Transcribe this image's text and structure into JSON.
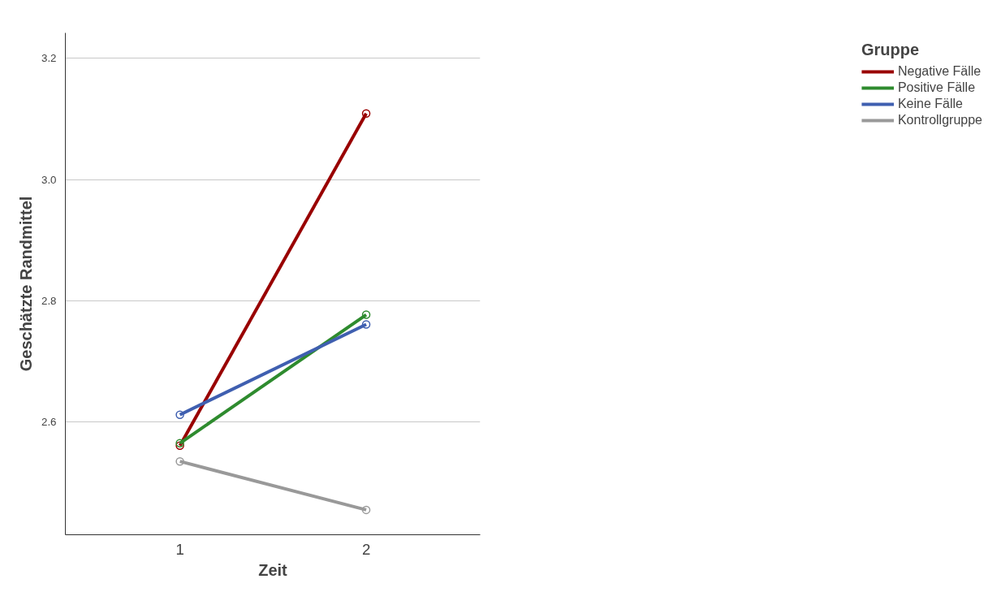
{
  "chart_data": {
    "type": "line",
    "xlabel": "Zeit",
    "ylabel": "Geschätzte Randmittel",
    "legend_title": "Gruppe",
    "categories": [
      "1",
      "2"
    ],
    "series": [
      {
        "name": "Negative Fälle",
        "color": "#990000",
        "values": [
          2.561,
          3.109
        ]
      },
      {
        "name": "Positive Fälle",
        "color": "#2e8b2e",
        "values": [
          2.565,
          2.777
        ]
      },
      {
        "name": "Keine Fälle",
        "color": "#3f5fb0",
        "values": [
          2.612,
          2.761
        ]
      },
      {
        "name": "Kontrollgruppe",
        "color": "#999999",
        "values": [
          2.535,
          2.455
        ]
      }
    ],
    "ylim": [
      2.414,
      3.242
    ],
    "yticks": [
      {
        "value": 2.6,
        "label": "2.6"
      },
      {
        "value": 2.8,
        "label": "2.8"
      },
      {
        "value": 3.0,
        "label": "3.0"
      },
      {
        "value": 3.2,
        "label": "3.2"
      }
    ],
    "grid": "y",
    "legend": "right",
    "marker": "circle",
    "line_style": "solid"
  }
}
